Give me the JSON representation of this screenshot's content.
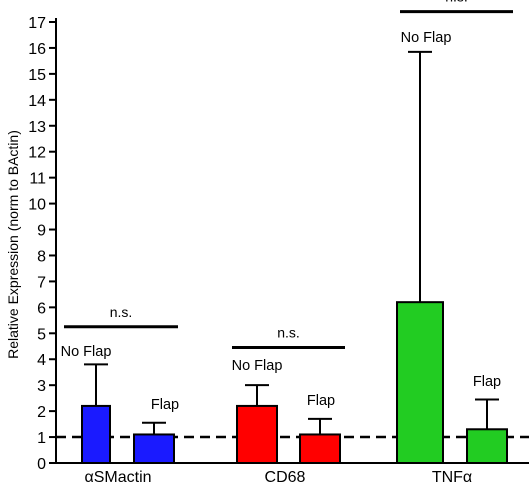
{
  "chart_data": {
    "type": "bar",
    "title": "",
    "xlabel": "",
    "ylabel": "Relative Expression (norm to BActin)",
    "ylim": [
      0,
      17
    ],
    "yticks": [
      0,
      1,
      2,
      3,
      4,
      5,
      6,
      7,
      8,
      9,
      10,
      11,
      12,
      13,
      14,
      15,
      16,
      17
    ],
    "reference_line": {
      "y": 1,
      "style": "dashed"
    },
    "groups": [
      {
        "category": "αSMactin",
        "color": "#1a1aff",
        "bars": [
          {
            "label": "No Flap",
            "value": 2.2,
            "error_upper": 3.8
          },
          {
            "label": "Flap",
            "value": 1.1,
            "error_upper": 1.55
          }
        ],
        "significance": {
          "text": "n.s.",
          "y": 5.25
        }
      },
      {
        "category": "CD68",
        "color": "#ff0000",
        "bars": [
          {
            "label": "No Flap",
            "value": 2.2,
            "error_upper": 3.0
          },
          {
            "label": "Flap",
            "value": 1.1,
            "error_upper": 1.7
          }
        ],
        "significance": {
          "text": "n.s.",
          "y": 4.45
        }
      },
      {
        "category": "TNFα",
        "color": "#22cc22",
        "bars": [
          {
            "label": "No Flap",
            "value": 6.2,
            "error_upper": 15.85
          },
          {
            "label": "Flap",
            "value": 1.3,
            "error_upper": 2.45
          }
        ],
        "significance": {
          "text": "n.s.",
          "y": 17.4
        }
      }
    ]
  }
}
